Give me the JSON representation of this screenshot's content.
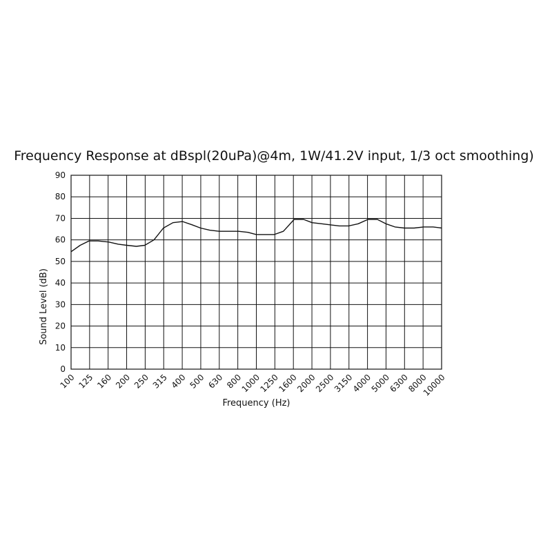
{
  "chart_data": {
    "type": "line",
    "title": "Frequency Response at dBspl(20uPa)@4m, 1W/41.2V input, 1/3 oct smoothing)",
    "xlabel": "Frequency (Hz)",
    "ylabel": "Sound Level (dB)",
    "x_scale": "log (1/3 octave bands)",
    "categories": [
      "100",
      "125",
      "160",
      "200",
      "250",
      "315",
      "400",
      "500",
      "630",
      "800",
      "1000",
      "1250",
      "1600",
      "2000",
      "2500",
      "3150",
      "4000",
      "5000",
      "6300",
      "8000",
      "10000"
    ],
    "y_ticks": [
      "0",
      "10",
      "20",
      "30",
      "40",
      "50",
      "60",
      "70",
      "80",
      "90"
    ],
    "ylim": [
      0,
      90
    ],
    "grid": true,
    "series": [
      {
        "x": [
          100,
          112,
          125,
          140,
          160,
          180,
          200,
          225,
          250,
          280,
          315,
          355,
          400,
          450,
          500,
          560,
          630,
          710,
          800,
          900,
          1000,
          1120,
          1250,
          1400,
          1600,
          1800,
          2000,
          2250,
          2500,
          2800,
          3150,
          3550,
          4000,
          4500,
          5000,
          5600,
          6300,
          7100,
          8000,
          9000,
          10000
        ],
        "values": [
          54.5,
          57.5,
          59.5,
          59.5,
          59,
          58,
          57.5,
          57,
          57.5,
          60,
          65.5,
          68,
          68.5,
          67,
          65.5,
          64.5,
          64,
          64,
          64,
          63.5,
          62.5,
          62.5,
          62.5,
          64,
          69.5,
          69.5,
          68,
          67.5,
          67,
          66.5,
          66.5,
          67.5,
          69.5,
          69.5,
          67.5,
          66,
          65.5,
          65.5,
          66,
          66,
          65.5
        ]
      }
    ]
  }
}
